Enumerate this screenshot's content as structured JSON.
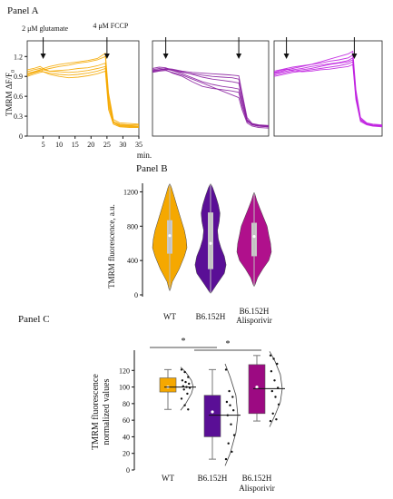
{
  "panels": {
    "a_title": "Panel A",
    "b_title": "Panel B",
    "c_title": "Panel C"
  },
  "chart_data": [
    {
      "type": "line",
      "panel": "A",
      "ylabel": "TMRM ΔF/F",
      "ylabel_subscript": "0",
      "xlabel": "min.",
      "xlim": [
        0,
        35
      ],
      "ylim": [
        0,
        1.3
      ],
      "x_ticks": [
        5,
        10,
        15,
        20,
        25,
        30,
        35
      ],
      "y_ticks": [
        0,
        0.3,
        0.6,
        0.9,
        1.2
      ],
      "y_tick_labels": [
        "0",
        "0.3",
        "0.6",
        "0.9",
        "1.2"
      ],
      "annotations": [
        {
          "text": "2 μM glutamate",
          "x": 5
        },
        {
          "text": "4 μM FCCP",
          "x": 25
        }
      ],
      "subplots": [
        {
          "color": "#F5A800",
          "glutamate_x": 5,
          "fccp_x": 25,
          "x": [
            0,
            2,
            4,
            5,
            7,
            10,
            13,
            16,
            19,
            22,
            24.5,
            25.5,
            27,
            29,
            32,
            35
          ],
          "series": [
            [
              0.95,
              0.97,
              1.0,
              1.02,
              1.05,
              1.08,
              1.1,
              1.12,
              1.14,
              1.17,
              1.25,
              0.65,
              0.25,
              0.2,
              0.19,
              0.18
            ],
            [
              0.92,
              0.95,
              0.98,
              1.0,
              1.02,
              1.05,
              1.07,
              1.1,
              1.12,
              1.15,
              1.2,
              0.6,
              0.22,
              0.18,
              0.17,
              0.17
            ],
            [
              0.97,
              1.0,
              1.02,
              1.0,
              0.98,
              0.99,
              1.0,
              1.02,
              1.03,
              1.06,
              1.1,
              0.55,
              0.22,
              0.17,
              0.16,
              0.15
            ],
            [
              1.0,
              1.02,
              1.05,
              1.02,
              0.98,
              0.97,
              0.96,
              0.97,
              0.99,
              1.02,
              1.05,
              0.5,
              0.2,
              0.16,
              0.15,
              0.15
            ],
            [
              0.9,
              0.93,
              0.96,
              0.97,
              0.95,
              0.93,
              0.92,
              0.93,
              0.95,
              0.98,
              1.02,
              0.45,
              0.2,
              0.15,
              0.14,
              0.14
            ],
            [
              0.93,
              0.96,
              0.99,
              0.97,
              0.93,
              0.9,
              0.88,
              0.89,
              0.91,
              0.94,
              0.98,
              0.4,
              0.18,
              0.14,
              0.13,
              0.13
            ]
          ]
        },
        {
          "color": "#8A1FA0",
          "glutamate_x": 4,
          "fccp_x": 26,
          "x": [
            0,
            2,
            4,
            6,
            9,
            12,
            15,
            18,
            21,
            24,
            26,
            27,
            28.5,
            30,
            32,
            35
          ],
          "series": [
            [
              0.98,
              1.0,
              1.0,
              0.95,
              0.9,
              0.82,
              0.75,
              0.72,
              0.7,
              0.68,
              0.66,
              0.45,
              0.22,
              0.18,
              0.16,
              0.15
            ],
            [
              1.0,
              1.02,
              1.01,
              0.99,
              0.96,
              0.94,
              0.92,
              0.9,
              0.89,
              0.88,
              0.86,
              0.6,
              0.25,
              0.18,
              0.16,
              0.15
            ],
            [
              0.97,
              0.99,
              1.01,
              1.0,
              0.97,
              0.93,
              0.89,
              0.86,
              0.84,
              0.82,
              0.8,
              0.55,
              0.24,
              0.17,
              0.15,
              0.14
            ],
            [
              1.02,
              1.04,
              1.03,
              0.99,
              0.94,
              0.88,
              0.82,
              0.78,
              0.75,
              0.73,
              0.71,
              0.5,
              0.23,
              0.17,
              0.15,
              0.14
            ],
            [
              0.99,
              1.0,
              1.02,
              1.01,
              0.98,
              0.96,
              0.95,
              0.94,
              0.93,
              0.92,
              0.91,
              0.65,
              0.28,
              0.19,
              0.17,
              0.16
            ],
            [
              0.96,
              0.98,
              0.99,
              0.96,
              0.92,
              0.86,
              0.8,
              0.74,
              0.68,
              0.62,
              0.58,
              0.4,
              0.2,
              0.15,
              0.13,
              0.12
            ]
          ]
        },
        {
          "color": "#C020E0",
          "glutamate_x": 4,
          "fccp_x": 26,
          "x": [
            0,
            2,
            4,
            6,
            9,
            12,
            15,
            18,
            21,
            24,
            25.5,
            26.5,
            28,
            30,
            32,
            35
          ],
          "series": [
            [
              0.95,
              0.97,
              1.0,
              1.02,
              1.05,
              1.08,
              1.12,
              1.16,
              1.2,
              1.24,
              1.28,
              0.7,
              0.28,
              0.2,
              0.18,
              0.17
            ],
            [
              0.98,
              1.0,
              1.02,
              1.04,
              1.06,
              1.08,
              1.1,
              1.13,
              1.15,
              1.18,
              1.22,
              0.65,
              0.26,
              0.19,
              0.17,
              0.16
            ],
            [
              0.92,
              0.94,
              0.96,
              0.98,
              1.0,
              1.02,
              1.05,
              1.08,
              1.1,
              1.12,
              1.15,
              0.6,
              0.24,
              0.18,
              0.16,
              0.15
            ],
            [
              0.96,
              0.99,
              1.01,
              0.99,
              0.97,
              0.98,
              1.0,
              1.01,
              1.03,
              1.05,
              1.08,
              0.55,
              0.22,
              0.17,
              0.15,
              0.14
            ],
            [
              0.9,
              0.92,
              0.94,
              0.96,
              0.98,
              1.0,
              1.02,
              1.04,
              1.06,
              1.09,
              1.12,
              0.58,
              0.24,
              0.18,
              0.16,
              0.15
            ],
            [
              0.94,
              0.96,
              0.98,
              1.0,
              1.02,
              1.05,
              1.07,
              1.09,
              1.11,
              1.14,
              1.18,
              0.62,
              0.25,
              0.18,
              0.16,
              0.15
            ]
          ]
        }
      ]
    },
    {
      "type": "violin",
      "panel": "B",
      "ylabel": "TMRM fluorescence, a.u.",
      "ylim": [
        0,
        1300
      ],
      "y_ticks": [
        0,
        400,
        800,
        1200
      ],
      "categories": [
        "WT",
        "B6.152H",
        "B6.152H Alisporivir"
      ],
      "colors": [
        "#F5A800",
        "#5A0F96",
        "#B0108C"
      ],
      "groups": [
        {
          "min": 50,
          "q1": 480,
          "median": 690,
          "q3": 870,
          "max": 1290,
          "density": [
            [
              50,
              0.02
            ],
            [
              150,
              0.15
            ],
            [
              300,
              0.55
            ],
            [
              450,
              0.85
            ],
            [
              550,
              1.0
            ],
            [
              650,
              0.95
            ],
            [
              750,
              0.85
            ],
            [
              850,
              0.7
            ],
            [
              950,
              0.55
            ],
            [
              1050,
              0.4
            ],
            [
              1150,
              0.25
            ],
            [
              1250,
              0.1
            ],
            [
              1290,
              0.02
            ]
          ]
        },
        {
          "min": 20,
          "q1": 300,
          "median": 600,
          "q3": 960,
          "max": 1290,
          "density": [
            [
              20,
              0.02
            ],
            [
              120,
              0.35
            ],
            [
              250,
              0.8
            ],
            [
              350,
              0.9
            ],
            [
              450,
              0.8
            ],
            [
              550,
              0.6
            ],
            [
              650,
              0.45
            ],
            [
              750,
              0.4
            ],
            [
              850,
              0.5
            ],
            [
              950,
              0.55
            ],
            [
              1050,
              0.45
            ],
            [
              1150,
              0.3
            ],
            [
              1250,
              0.12
            ],
            [
              1290,
              0.02
            ]
          ]
        },
        {
          "min": 100,
          "q1": 450,
          "median": 680,
          "q3": 840,
          "max": 1190,
          "density": [
            [
              100,
              0.02
            ],
            [
              200,
              0.2
            ],
            [
              300,
              0.5
            ],
            [
              400,
              0.85
            ],
            [
              500,
              1.0
            ],
            [
              600,
              0.95
            ],
            [
              700,
              0.85
            ],
            [
              800,
              0.75
            ],
            [
              900,
              0.55
            ],
            [
              1000,
              0.35
            ],
            [
              1100,
              0.15
            ],
            [
              1190,
              0.02
            ]
          ]
        }
      ]
    },
    {
      "type": "box",
      "panel": "C",
      "ylabel_lines": [
        "TMRM fluorescence",
        "normalized values"
      ],
      "ylim": [
        0,
        140
      ],
      "y_ticks": [
        0,
        20,
        40,
        60,
        80,
        100,
        120
      ],
      "categories": [
        "WT",
        "B6.152H",
        "B6.152H Alisporivir"
      ],
      "colors": [
        "#F5A800",
        "#5A0F96",
        "#9C0A82"
      ],
      "groups": [
        {
          "whisker_low": 73,
          "q1": 94,
          "median": 100,
          "q3": 111,
          "whisker_high": 121,
          "mean": 100,
          "points": [
            121,
            118,
            112,
            108,
            106,
            104,
            101,
            100,
            99,
            97,
            92,
            86,
            78,
            73
          ],
          "dist": [
            [
              72,
              0
            ],
            [
              80,
              0.4
            ],
            [
              92,
              0.85
            ],
            [
              100,
              1.0
            ],
            [
              108,
              0.85
            ],
            [
              118,
              0.4
            ],
            [
              124,
              0
            ]
          ]
        },
        {
          "whisker_low": 13,
          "q1": 40,
          "median": 70,
          "q3": 90,
          "whisker_high": 121,
          "mean": 66,
          "points": [
            121,
            95,
            88,
            82,
            78,
            72,
            66,
            55,
            42,
            32,
            22,
            13
          ],
          "dist": [
            [
              5,
              0
            ],
            [
              20,
              0.4
            ],
            [
              45,
              0.85
            ],
            [
              66,
              1.0
            ],
            [
              90,
              0.85
            ],
            [
              112,
              0.4
            ],
            [
              128,
              0
            ]
          ]
        },
        {
          "whisker_low": 59,
          "q1": 68,
          "median": 100,
          "q3": 127,
          "whisker_high": 138,
          "mean": 98,
          "points": [
            138,
            134,
            128,
            119,
            108,
            99,
            95,
            88,
            79,
            68,
            61,
            59
          ],
          "dist": [
            [
              52,
              0
            ],
            [
              65,
              0.4
            ],
            [
              82,
              0.85
            ],
            [
              98,
              1.0
            ],
            [
              115,
              0.85
            ],
            [
              132,
              0.4
            ],
            [
              143,
              0
            ]
          ]
        }
      ],
      "significance": [
        {
          "from": 0,
          "to": 1,
          "label": "*"
        },
        {
          "from": 1,
          "to": 2,
          "label": "*"
        }
      ]
    }
  ]
}
